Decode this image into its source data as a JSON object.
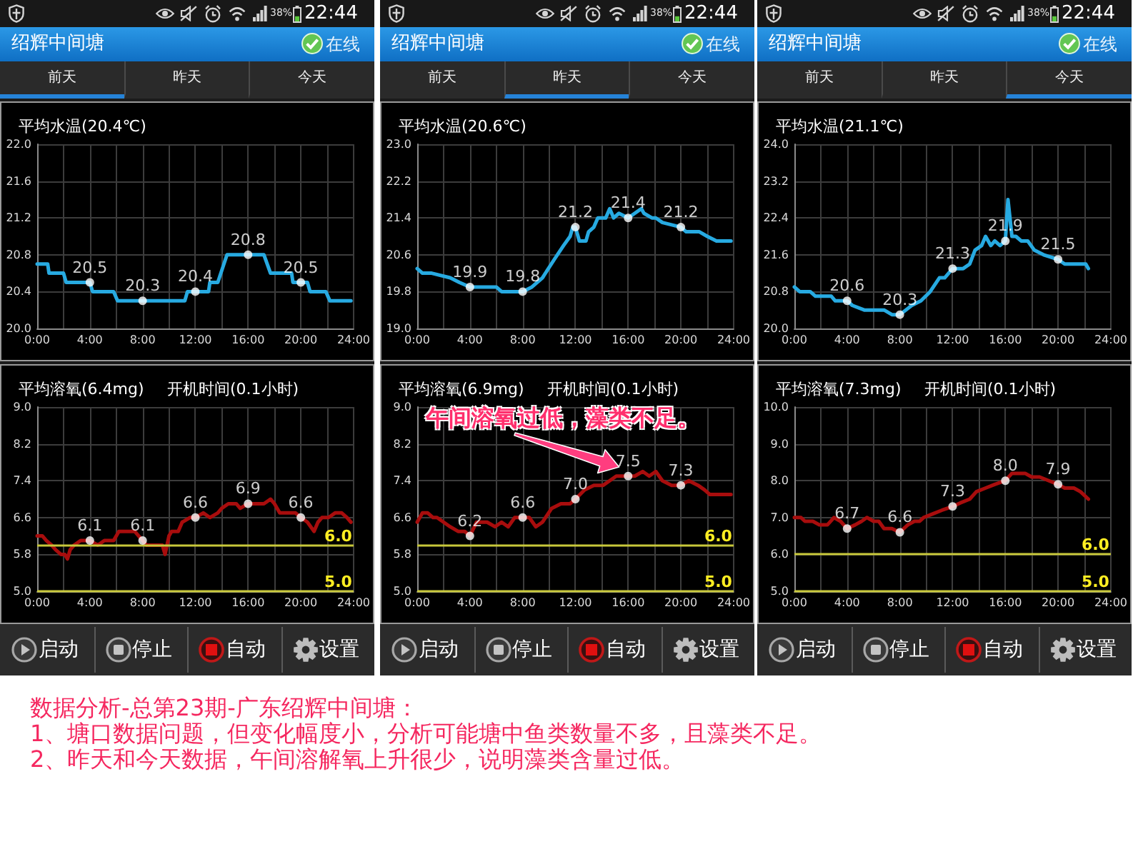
{
  "chart_data": [
    {
      "type": "line",
      "title": "平均水温(20.4℃)",
      "series": [
        {
          "color": "#27aae1",
          "x": [
            0,
            0.8,
            0.9,
            2.0,
            2.2,
            4.0,
            4.2,
            5.8,
            6.1,
            11.2,
            11.4,
            12.0,
            13.0,
            13.1,
            13.7,
            14.4,
            16.0,
            17.2,
            17.7,
            19.3,
            19.4,
            20.0,
            20.5,
            20.7,
            21.9,
            22.2,
            23.8
          ],
          "values": [
            20.7,
            20.7,
            20.6,
            20.6,
            20.5,
            20.5,
            20.4,
            20.4,
            20.3,
            20.3,
            20.4,
            20.4,
            20.4,
            20.5,
            20.5,
            20.8,
            20.8,
            20.8,
            20.6,
            20.6,
            20.5,
            20.5,
            20.5,
            20.4,
            20.4,
            20.3,
            20.3
          ]
        },
        {
          "type": "scatter",
          "marker": "circle",
          "color": "#ffffff",
          "x": [
            4,
            8,
            12,
            16,
            20
          ],
          "values": [
            20.5,
            20.3,
            20.4,
            20.8,
            20.5
          ],
          "value_labels": [
            "20.5",
            "20.3",
            "20.4",
            "20.8",
            "20.5"
          ]
        }
      ],
      "xlim": [
        0,
        24
      ],
      "xticks": [
        {
          "value": 0,
          "label": "0:00"
        },
        {
          "value": 2,
          "label": null
        },
        {
          "value": 4,
          "label": "4:00"
        },
        {
          "value": 6,
          "label": null
        },
        {
          "value": 8,
          "label": "8:00"
        },
        {
          "value": 10,
          "label": null
        },
        {
          "value": 12,
          "label": "12:00"
        },
        {
          "value": 14,
          "label": null
        },
        {
          "value": 16,
          "label": "16:00"
        },
        {
          "value": 18,
          "label": null
        },
        {
          "value": 20,
          "label": "20:00"
        },
        {
          "value": 22,
          "label": null
        },
        {
          "value": 24,
          "label": "24:00"
        }
      ],
      "ylim": [
        20,
        22
      ],
      "yticks": [
        {
          "value": 20,
          "label": "20.0"
        },
        20.4,
        20.8,
        21.2,
        21.6,
        {
          "value": 22,
          "label": "22.0"
        }
      ],
      "grid": true,
      "annotations": [
        "38%",
        "22:44",
        "绍辉中间塘",
        "在线",
        "前天",
        "昨天",
        "今天"
      ]
    },
    {
      "type": "line",
      "title": "平均水温(20.6℃)",
      "series": [
        {
          "color": "#27aae1",
          "x": [
            0,
            0.4,
            1.1,
            2.5,
            3.2,
            4.0,
            6.0,
            6.4,
            8.0,
            8.7,
            9.5,
            10.4,
            11.1,
            11.6,
            11.8,
            12.0,
            12.3,
            12.8,
            13.0,
            13.4,
            13.7,
            14.3,
            14.6,
            14.9,
            15.3,
            16.0,
            16.5,
            17.0,
            17.2,
            17.8,
            18.1,
            18.6,
            20.0,
            20.4,
            21.4,
            22.0,
            22.7,
            23.8
          ],
          "values": [
            20.3,
            20.2,
            20.2,
            20.1,
            20.0,
            19.9,
            19.9,
            19.8,
            19.8,
            19.9,
            20.1,
            20.5,
            20.8,
            21.0,
            21.2,
            21.2,
            20.9,
            20.9,
            21.1,
            21.2,
            21.4,
            21.4,
            21.6,
            21.4,
            21.5,
            21.4,
            21.5,
            21.6,
            21.5,
            21.4,
            21.4,
            21.3,
            21.2,
            21.1,
            21.1,
            21.0,
            20.9,
            20.9
          ]
        },
        {
          "type": "scatter",
          "marker": "circle",
          "color": "#ffffff",
          "x": [
            4,
            8,
            12,
            16,
            20
          ],
          "values": [
            19.9,
            19.8,
            21.2,
            21.4,
            21.2
          ],
          "value_labels": [
            "19.9",
            "19.8",
            "21.2",
            "21.4",
            "21.2"
          ]
        }
      ],
      "xlim": [
        0,
        24
      ],
      "xticks": [
        {
          "value": 0,
          "label": "0:00"
        },
        {
          "value": 2,
          "label": null
        },
        {
          "value": 4,
          "label": "4:00"
        },
        {
          "value": 6,
          "label": null
        },
        {
          "value": 8,
          "label": "8:00"
        },
        {
          "value": 10,
          "label": null
        },
        {
          "value": 12,
          "label": "12:00"
        },
        {
          "value": 14,
          "label": null
        },
        {
          "value": 16,
          "label": "16:00"
        },
        {
          "value": 18,
          "label": null
        },
        {
          "value": 20,
          "label": "20:00"
        },
        {
          "value": 22,
          "label": null
        },
        {
          "value": 24,
          "label": "24:00"
        }
      ],
      "ylim": [
        19,
        23
      ],
      "yticks": [
        {
          "value": 19,
          "label": "19.0"
        },
        19.8,
        20.6,
        21.4,
        22.2,
        {
          "value": 23,
          "label": "23.0"
        }
      ],
      "grid": true,
      "annotations": [
        "38%",
        "22:44",
        "绍辉中间塘",
        "在线",
        "前天",
        "昨天",
        "今天"
      ]
    },
    {
      "type": "line",
      "title": "平均水温(21.1℃)",
      "series": [
        {
          "color": "#27aae1",
          "x": [
            0,
            0.4,
            1.2,
            1.6,
            2.8,
            3.1,
            4.0,
            4.4,
            5.3,
            6.8,
            7.4,
            8.0,
            8.9,
            9.6,
            10.3,
            11.0,
            11.4,
            12.0,
            12.8,
            13.3,
            13.7,
            14.2,
            14.5,
            14.9,
            15.2,
            15.6,
            16.0,
            16.2,
            16.5,
            16.8,
            17.2,
            17.7,
            18.2,
            18.9,
            20.0,
            20.5,
            21.6,
            22.1,
            22.3
          ],
          "values": [
            20.9,
            20.8,
            20.8,
            20.7,
            20.7,
            20.6,
            20.6,
            20.5,
            20.4,
            20.4,
            20.3,
            20.3,
            20.5,
            20.6,
            20.8,
            21.1,
            21.1,
            21.3,
            21.3,
            21.4,
            21.7,
            21.8,
            22.0,
            21.8,
            21.9,
            21.8,
            21.9,
            22.8,
            22.0,
            22.0,
            21.9,
            21.9,
            21.7,
            21.6,
            21.5,
            21.4,
            21.4,
            21.4,
            21.3
          ]
        },
        {
          "type": "scatter",
          "marker": "circle",
          "color": "#ffffff",
          "x": [
            4,
            8,
            12,
            16,
            20
          ],
          "values": [
            20.6,
            20.3,
            21.3,
            21.9,
            21.5
          ],
          "value_labels": [
            "20.6",
            "20.3",
            "21.3",
            "21.9",
            "21.5"
          ]
        }
      ],
      "xlim": [
        0,
        24
      ],
      "xticks": [
        {
          "value": 0,
          "label": "0:00"
        },
        {
          "value": 2,
          "label": null
        },
        {
          "value": 4,
          "label": "4:00"
        },
        {
          "value": 6,
          "label": null
        },
        {
          "value": 8,
          "label": "8:00"
        },
        {
          "value": 10,
          "label": null
        },
        {
          "value": 12,
          "label": "12:00"
        },
        {
          "value": 14,
          "label": null
        },
        {
          "value": 16,
          "label": "16:00"
        },
        {
          "value": 18,
          "label": null
        },
        {
          "value": 20,
          "label": "20:00"
        },
        {
          "value": 22,
          "label": null
        },
        {
          "value": 24,
          "label": "24:00"
        }
      ],
      "ylim": [
        20,
        24
      ],
      "yticks": [
        {
          "value": 20,
          "label": "20.0"
        },
        20.8,
        21.6,
        22.4,
        23.2,
        {
          "value": 24,
          "label": "24.0"
        }
      ],
      "grid": true,
      "annotations": [
        "38%",
        "22:44",
        "绍辉中间塘",
        "在线",
        "前天",
        "昨天",
        "今天"
      ]
    },
    {
      "type": "line",
      "title": "平均溶氧(6.4mg)",
      "subtitle": "开机时间(0.1小时)",
      "series": [
        {
          "color": "#a80d0d",
          "x": [
            0,
            0.4,
            0.7,
            1.1,
            1.4,
            1.8,
            2.1,
            2.3,
            2.5,
            2.8,
            3.3,
            4.0,
            4.6,
            5.1,
            5.8,
            6.2,
            7.4,
            7.7,
            8.0,
            8.3,
            9.5,
            9.7,
            10.0,
            10.2,
            10.7,
            11.0,
            11.6,
            12.0,
            12.6,
            13.1,
            13.7,
            14.0,
            14.5,
            15.1,
            15.4,
            16.0,
            17.2,
            17.7,
            18.0,
            18.4,
            19.6,
            20.0,
            20.5,
            21.0,
            21.3,
            21.6,
            22.1,
            22.6,
            23.1,
            23.5,
            23.8
          ],
          "values": [
            6.2,
            6.2,
            6.1,
            6.0,
            5.9,
            5.8,
            5.8,
            5.7,
            5.9,
            6.0,
            6.1,
            6.1,
            6.0,
            6.1,
            6.1,
            6.3,
            6.3,
            6.2,
            6.1,
            6.0,
            6.0,
            5.8,
            6.2,
            6.3,
            6.3,
            6.5,
            6.6,
            6.6,
            6.7,
            6.6,
            6.7,
            6.8,
            6.9,
            6.9,
            6.8,
            6.9,
            6.9,
            7.0,
            6.9,
            6.7,
            6.7,
            6.6,
            6.5,
            6.3,
            6.5,
            6.6,
            6.6,
            6.7,
            6.7,
            6.6,
            6.5
          ]
        },
        {
          "type": "scatter",
          "marker": "circle",
          "color": "#ffffff",
          "x": [
            4,
            8,
            12,
            16,
            20
          ],
          "values": [
            6.1,
            6.1,
            6.6,
            6.9,
            6.6
          ],
          "value_labels": [
            "6.1",
            "6.1",
            "6.6",
            "6.9",
            "6.6"
          ]
        }
      ],
      "xlim": [
        0,
        24
      ],
      "xticks": [
        {
          "value": 0,
          "label": "0:00"
        },
        {
          "value": 2,
          "label": null
        },
        {
          "value": 4,
          "label": "4:00"
        },
        {
          "value": 6,
          "label": null
        },
        {
          "value": 8,
          "label": "8:00"
        },
        {
          "value": 10,
          "label": null
        },
        {
          "value": 12,
          "label": "12:00"
        },
        {
          "value": 14,
          "label": null
        },
        {
          "value": 16,
          "label": "16:00"
        },
        {
          "value": 18,
          "label": null
        },
        {
          "value": 20,
          "label": "20:00"
        },
        {
          "value": 22,
          "label": null
        },
        {
          "value": 24,
          "label": "24:00"
        }
      ],
      "ylim": [
        5,
        9
      ],
      "yticks": [
        {
          "value": 5,
          "label": "5.0"
        },
        5.8,
        6.6,
        7.4,
        8.2,
        {
          "value": 9,
          "label": "9.0"
        }
      ],
      "grid": true,
      "ref_lines": [
        {
          "axis": "y",
          "value": 6,
          "label": "6.0",
          "color": "#c8c83a"
        },
        {
          "axis": "y",
          "value": 5,
          "label": "5.0",
          "color": "#c8c83a"
        }
      ],
      "annotations": [
        "启动",
        "停止",
        "自动",
        "设置"
      ]
    },
    {
      "type": "line",
      "title": "平均溶氧(6.9mg)",
      "subtitle": "开机时间(0.1小时)",
      "series": [
        {
          "color": "#a80d0d",
          "x": [
            0,
            0.4,
            0.8,
            1.2,
            1.5,
            2.0,
            2.5,
            3.1,
            3.6,
            4.0,
            4.5,
            4.9,
            5.3,
            5.9,
            6.4,
            6.9,
            7.4,
            8.0,
            8.5,
            9.0,
            9.5,
            10.2,
            10.9,
            11.6,
            12.0,
            12.7,
            13.4,
            14.1,
            14.6,
            15.1,
            16.0,
            16.5,
            17.1,
            17.6,
            18.1,
            18.6,
            19.3,
            20.0,
            20.6,
            21.3,
            21.8,
            22.2,
            22.7,
            23.2,
            23.8
          ],
          "values": [
            6.5,
            6.7,
            6.7,
            6.6,
            6.6,
            6.5,
            6.4,
            6.3,
            6.3,
            6.2,
            6.5,
            6.5,
            6.5,
            6.4,
            6.5,
            6.4,
            6.6,
            6.6,
            6.6,
            6.4,
            6.5,
            6.8,
            6.9,
            6.9,
            7.0,
            7.2,
            7.3,
            7.3,
            7.4,
            7.5,
            7.5,
            7.5,
            7.6,
            7.5,
            7.6,
            7.4,
            7.3,
            7.3,
            7.4,
            7.3,
            7.2,
            7.1,
            7.1,
            7.1,
            7.1
          ]
        },
        {
          "type": "scatter",
          "marker": "circle",
          "color": "#ffffff",
          "x": [
            4,
            8,
            12,
            16,
            20
          ],
          "values": [
            6.2,
            6.6,
            7.0,
            7.5,
            7.3
          ],
          "value_labels": [
            "6.2",
            "6.6",
            "7.0",
            "7.5",
            "7.3"
          ]
        }
      ],
      "xlim": [
        0,
        24
      ],
      "xticks": [
        {
          "value": 0,
          "label": "0:00"
        },
        {
          "value": 2,
          "label": null
        },
        {
          "value": 4,
          "label": "4:00"
        },
        {
          "value": 6,
          "label": null
        },
        {
          "value": 8,
          "label": "8:00"
        },
        {
          "value": 10,
          "label": null
        },
        {
          "value": 12,
          "label": "12:00"
        },
        {
          "value": 14,
          "label": null
        },
        {
          "value": 16,
          "label": "16:00"
        },
        {
          "value": 18,
          "label": null
        },
        {
          "value": 20,
          "label": "20:00"
        },
        {
          "value": 22,
          "label": null
        },
        {
          "value": 24,
          "label": "24:00"
        }
      ],
      "ylim": [
        5,
        9
      ],
      "yticks": [
        {
          "value": 5,
          "label": "5.0"
        },
        5.8,
        6.6,
        7.4,
        8.2,
        {
          "value": 9,
          "label": "9.0"
        }
      ],
      "grid": true,
      "ref_lines": [
        {
          "axis": "y",
          "value": 6,
          "label": "6.0",
          "color": "#c8c83a"
        },
        {
          "axis": "y",
          "value": 5,
          "label": "5.0",
          "color": "#c8c83a"
        }
      ],
      "annotations": [
        {
          "text": "午间溶氧过低，藻类不足。",
          "x": 15.1,
          "y": 7.7
        },
        "启动",
        "停止",
        "自动",
        "设置"
      ]
    },
    {
      "type": "line",
      "title": "平均溶氧(7.3mg)",
      "subtitle": "开机时间(0.1小时)",
      "series": [
        {
          "color": "#a80d0d",
          "x": [
            0,
            0.5,
            0.8,
            1.4,
            1.9,
            2.5,
            3.0,
            3.5,
            4.0,
            4.6,
            5.1,
            5.5,
            6.0,
            6.4,
            6.8,
            7.4,
            8.0,
            8.6,
            9.1,
            9.5,
            9.8,
            10.5,
            11.2,
            12.0,
            12.6,
            13.3,
            13.8,
            14.5,
            15.2,
            16.0,
            16.5,
            17.0,
            17.5,
            18.0,
            18.6,
            19.3,
            20.0,
            20.5,
            21.2,
            21.7,
            22.3
          ],
          "values": [
            7.0,
            7.0,
            6.9,
            6.9,
            6.8,
            6.8,
            7.0,
            6.9,
            6.7,
            6.8,
            6.9,
            7.0,
            6.9,
            6.9,
            6.7,
            6.7,
            6.6,
            6.8,
            6.9,
            6.9,
            7.0,
            7.1,
            7.2,
            7.3,
            7.4,
            7.5,
            7.7,
            7.8,
            7.9,
            8.0,
            8.2,
            8.2,
            8.2,
            8.1,
            8.1,
            8.0,
            7.9,
            7.8,
            7.8,
            7.7,
            7.5
          ]
        },
        {
          "type": "scatter",
          "marker": "circle",
          "color": "#ffffff",
          "x": [
            4,
            8,
            12,
            16,
            20
          ],
          "values": [
            6.7,
            6.6,
            7.3,
            8.0,
            7.9
          ],
          "value_labels": [
            "6.7",
            "6.6",
            "7.3",
            "8.0",
            "7.9"
          ]
        }
      ],
      "xlim": [
        0,
        24
      ],
      "xticks": [
        {
          "value": 0,
          "label": "0:00"
        },
        {
          "value": 2,
          "label": null
        },
        {
          "value": 4,
          "label": "4:00"
        },
        {
          "value": 6,
          "label": null
        },
        {
          "value": 8,
          "label": "8:00"
        },
        {
          "value": 10,
          "label": null
        },
        {
          "value": 12,
          "label": "12:00"
        },
        {
          "value": 14,
          "label": null
        },
        {
          "value": 16,
          "label": "16:00"
        },
        {
          "value": 18,
          "label": null
        },
        {
          "value": 20,
          "label": "20:00"
        },
        {
          "value": 22,
          "label": null
        },
        {
          "value": 24,
          "label": "24:00"
        }
      ],
      "ylim": [
        5,
        10
      ],
      "yticks": [
        {
          "value": 5,
          "label": "5.0"
        },
        {
          "value": 6,
          "label": "6.0"
        },
        {
          "value": 7,
          "label": "7.0"
        },
        {
          "value": 8,
          "label": "8.0"
        },
        {
          "value": 9,
          "label": "9.0"
        },
        {
          "value": 10,
          "label": "10.0"
        }
      ],
      "grid": true,
      "ref_lines": [
        {
          "axis": "y",
          "value": 6,
          "label": "6.0",
          "color": "#c8c83a"
        },
        {
          "axis": "y",
          "value": 5,
          "label": "5.0",
          "color": "#c8c83a"
        }
      ],
      "annotations": [
        "启动",
        "停止",
        "自动",
        "设置"
      ]
    },
    {
      "type": "other",
      "annotations": [
        "数据分析-总第23期-广东绍辉中间塘：",
        "1、塘口数据问题，但变化幅度小，分析可能塘中鱼类数量不多，且藻类不足。",
        "2、昨天和今天数据，午间溶解氧上升很少，说明藻类含量过低。"
      ]
    }
  ]
}
